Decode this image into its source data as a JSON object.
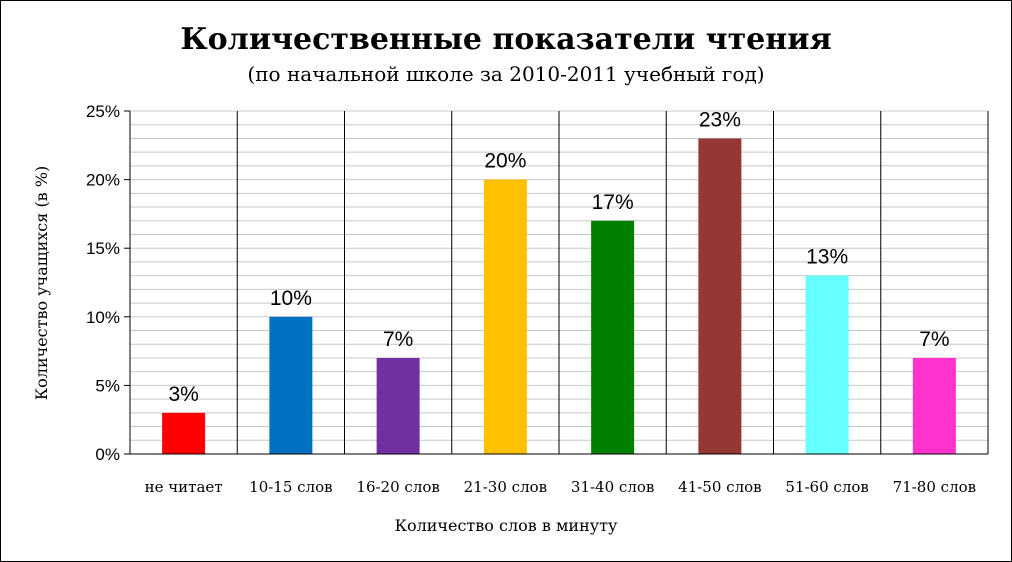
{
  "chart_data": {
    "type": "bar",
    "title": "Количественные показатели чтения",
    "subtitle": "(по начальной школе за 2010-2011 учебный год)",
    "xlabel": "Количество слов в минуту",
    "ylabel": "Количество учащихся (в %)",
    "categories": [
      "не читает",
      "10-15 слов",
      "16-20 слов",
      "21-30 слов",
      "31-40 слов",
      "41-50 слов",
      "51-60 слов",
      "71-80 слов"
    ],
    "values": [
      3,
      10,
      7,
      20,
      17,
      23,
      13,
      7
    ],
    "data_labels": [
      "3%",
      "10%",
      "7%",
      "20%",
      "17%",
      "23%",
      "13%",
      "7%"
    ],
    "colors": [
      "#ff0000",
      "#0070c0",
      "#7030a0",
      "#ffc000",
      "#008000",
      "#953735",
      "#66ffff",
      "#ff33cc"
    ],
    "ylim": [
      0,
      25
    ],
    "yticks": [
      0,
      5,
      10,
      15,
      20,
      25
    ],
    "ytick_labels": [
      "0%",
      "5%",
      "10%",
      "15%",
      "20%",
      "25%"
    ],
    "grid": true,
    "legend": "none"
  }
}
